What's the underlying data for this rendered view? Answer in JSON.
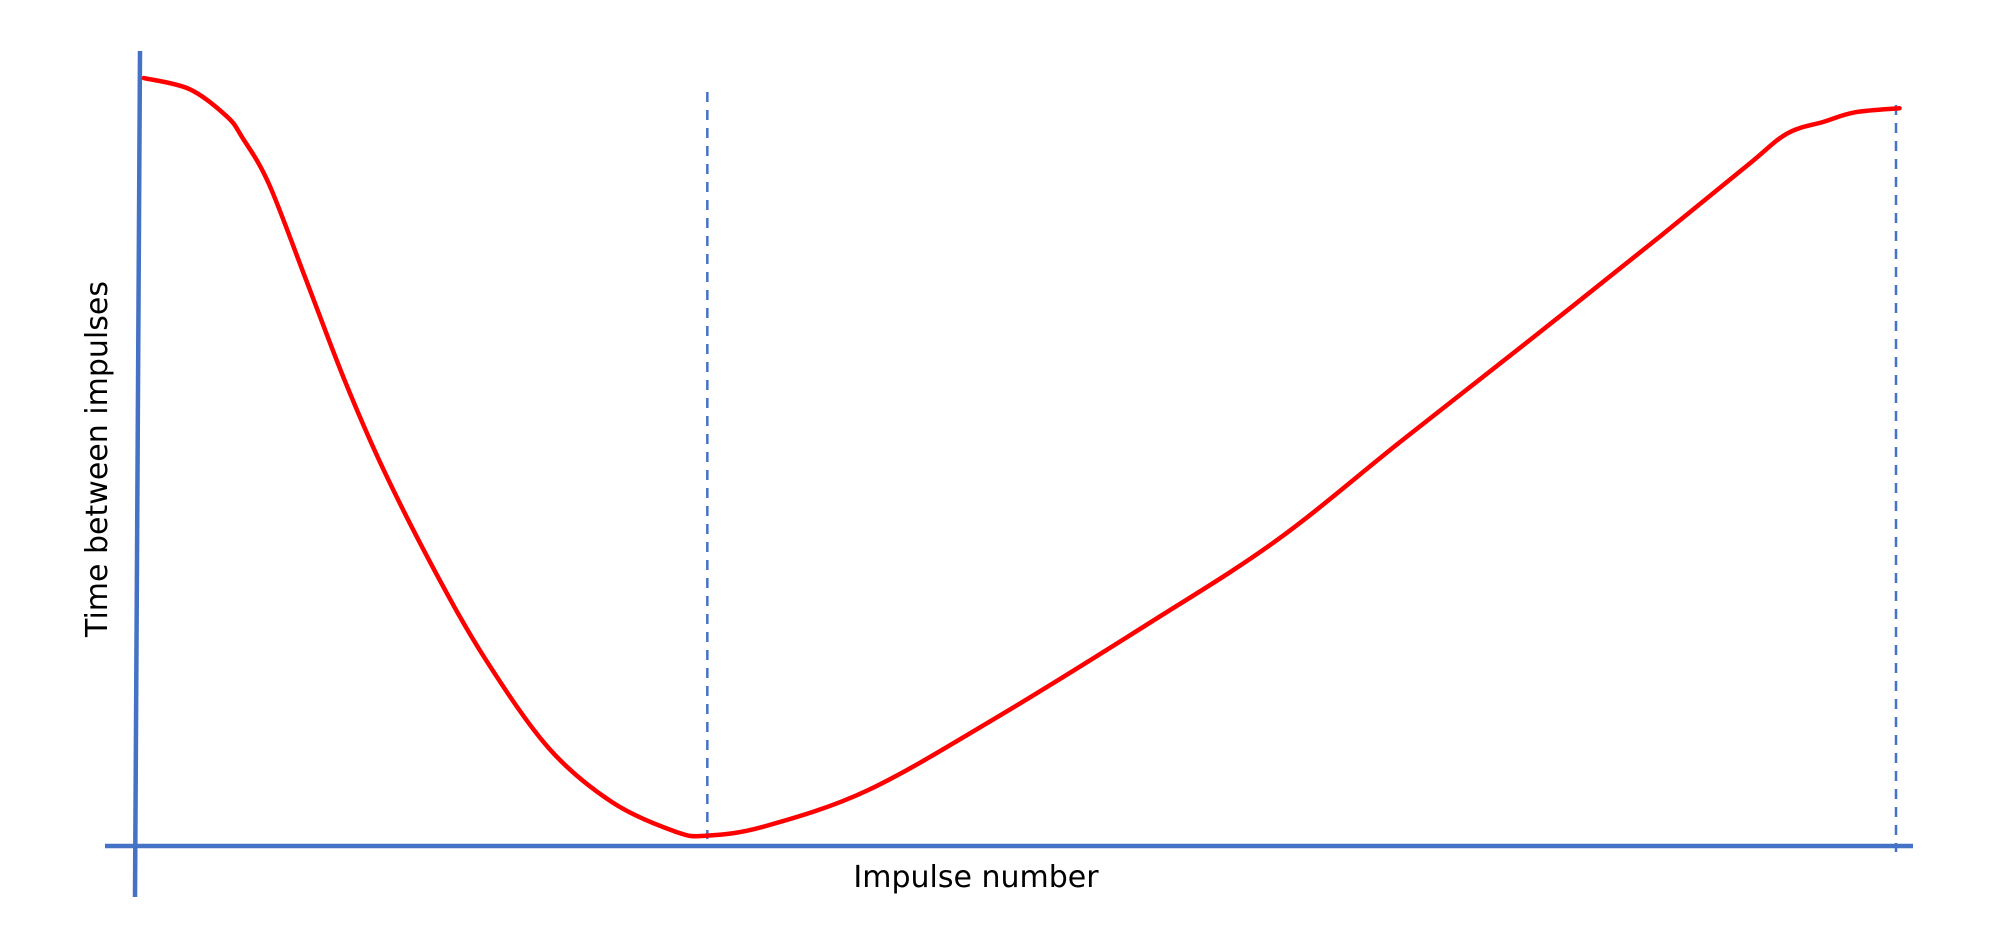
{
  "chart_data": {
    "type": "line",
    "title": "",
    "xlabel": "Impulse number",
    "ylabel": "Time between impulses",
    "xlim": [
      0,
      100
    ],
    "ylim": [
      0,
      100
    ],
    "grid": false,
    "ticks": false,
    "colors": {
      "axis": "#4472C4",
      "curve": "#FF0000",
      "reference_lines": "#4472C4"
    },
    "series": [
      {
        "x": [
          0.5,
          3.1,
          5.2,
          6.1,
          7.6,
          9.7,
          11.9,
          14.1,
          17.0,
          19.9,
          23.5,
          27.1,
          30.7,
          32.5,
          35.8,
          41.6,
          48.8,
          57.5,
          64.8,
          72.0,
          79.3,
          86.5,
          91.5,
          93.8,
          95.9,
          97.7,
          100.2
        ],
        "y": [
          96.6,
          95.2,
          91.8,
          89.1,
          83.3,
          71.3,
          58.6,
          47.4,
          34.7,
          23.5,
          12.3,
          5.5,
          1.8,
          1.3,
          2.5,
          7.0,
          16.0,
          27.9,
          38.4,
          51.1,
          63.8,
          76.5,
          85.5,
          89.6,
          91.1,
          92.3,
          92.8
        ]
      }
    ],
    "reference_lines": [
      {
        "orientation": "vertical",
        "x": 32.5,
        "style": "dashed"
      },
      {
        "orientation": "vertical",
        "x": 100,
        "style": "dashed"
      }
    ]
  }
}
